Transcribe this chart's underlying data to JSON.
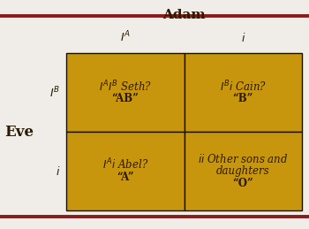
{
  "title": "Adam",
  "row_label": "Eve",
  "col_headers": [
    "$I^A$",
    "$i$"
  ],
  "row_headers": [
    "$I^B$",
    "$i$"
  ],
  "cells": [
    [
      "$I^A I^B$ Seth?\n“AB”",
      "$I^B i$ Cain?\n“B”"
    ],
    [
      "$I^A i$ Abel?\n“A”",
      "$ii$ Other sons and\ndaughters\n“O”"
    ]
  ],
  "cell_color": "#C8960C",
  "border_color": "#8B1A1A",
  "background_color": "#F0EDE8",
  "text_color": "#2B1A00",
  "title_fontsize": 11,
  "header_fontsize": 9,
  "cell_fontsize": 8.5,
  "row_label_fontsize": 12
}
